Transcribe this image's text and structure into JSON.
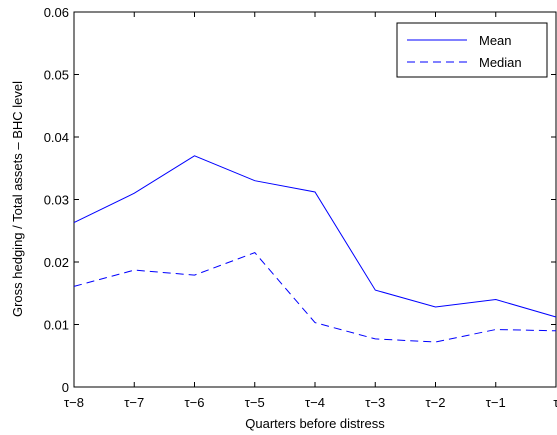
{
  "chart_data": {
    "type": "line",
    "title": "",
    "xlabel": "Quarters before distress",
    "ylabel": "Gross hedging / Total assets – BHC level",
    "categories": [
      "τ−8",
      "τ−7",
      "τ−6",
      "τ−5",
      "τ−4",
      "τ−3",
      "τ−2",
      "τ−1",
      "τ"
    ],
    "yticks": [
      "0",
      "0.01",
      "0.02",
      "0.03",
      "0.04",
      "0.05",
      "0.06"
    ],
    "ylim": [
      0,
      0.06
    ],
    "grid": false,
    "legend_position": "top-right",
    "series": [
      {
        "name": "Mean",
        "style": "solid",
        "color": "#0000ff",
        "values": [
          0.0263,
          0.031,
          0.037,
          0.033,
          0.0312,
          0.0155,
          0.0128,
          0.014,
          0.0112
        ]
      },
      {
        "name": "Median",
        "style": "dashed",
        "color": "#0000ff",
        "values": [
          0.0161,
          0.0187,
          0.0179,
          0.0215,
          0.0103,
          0.0077,
          0.0072,
          0.0092,
          0.009
        ]
      }
    ]
  }
}
